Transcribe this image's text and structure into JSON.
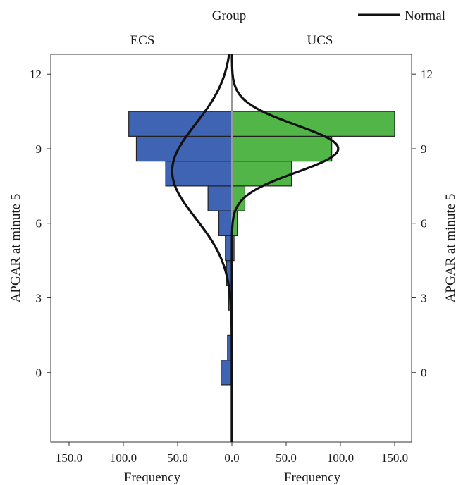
{
  "chart_data": {
    "type": "bar",
    "orientation": "horizontal-population-pyramid",
    "group_title": "Group",
    "groups": [
      "ECS",
      "UCS"
    ],
    "ylabel_left": "APGAR at minute 5",
    "ylabel_right": "APGAR at minute 5",
    "xlabel_left": "Frequency",
    "xlabel_right": "Frequency",
    "ylim": [
      -2.8,
      12.8
    ],
    "yticks": [
      0,
      3,
      6,
      9,
      12
    ],
    "ytick_labels": [
      "0",
      "3",
      "6",
      "9",
      "12"
    ],
    "xlim": [
      0,
      160
    ],
    "xticks": [
      0,
      50,
      100,
      150
    ],
    "xtick_labels_left": [
      "150.0",
      "100.0",
      "50.0",
      "0.0"
    ],
    "xtick_labels_right": [
      "0.0",
      "50.0",
      "100.0",
      "150.0"
    ],
    "legend": {
      "label": "Normal",
      "position": "top-right"
    },
    "colors": {
      "ECS": "#3f64b4",
      "UCS": "#52b548",
      "curve": "#111111",
      "center": "#999999"
    },
    "series": [
      {
        "name": "ECS",
        "apgar": [
          0,
          1,
          2,
          3,
          4,
          5,
          6,
          7,
          8,
          9,
          10
        ],
        "frequency": [
          10,
          4,
          0,
          3,
          5,
          6,
          12,
          22,
          61,
          88,
          95
        ]
      },
      {
        "name": "UCS",
        "apgar": [
          0,
          1,
          2,
          3,
          4,
          5,
          6,
          7,
          8,
          9,
          10
        ],
        "frequency": [
          0,
          0,
          0,
          0,
          0,
          2,
          5,
          12,
          55,
          92,
          150
        ]
      }
    ],
    "normal_curves": [
      {
        "group": "ECS",
        "mean": 8.1,
        "sd": 1.9,
        "peak": 55
      },
      {
        "group": "UCS",
        "mean": 9.0,
        "sd": 0.95,
        "peak": 98
      }
    ]
  }
}
